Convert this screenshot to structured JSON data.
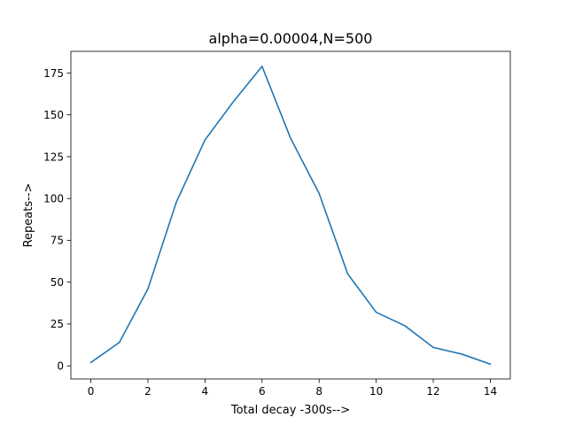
{
  "chart_data": {
    "type": "line",
    "title": "alpha=0.00004,N=500",
    "xlabel": "Total decay -300s-->",
    "ylabel": "Repeats-->",
    "x": [
      0,
      1,
      2,
      3,
      4,
      5,
      6,
      7,
      8,
      9,
      10,
      11,
      12,
      13,
      14
    ],
    "series": [
      {
        "values": [
          2,
          14,
          46,
          98,
          135,
          158,
          179,
          136,
          103,
          55,
          32,
          24,
          11,
          7,
          1
        ],
        "color": "#1f77b4"
      }
    ],
    "xlim": [
      -0.7,
      14.7
    ],
    "ylim": [
      -7.85,
      187.95
    ],
    "xticks": [
      0,
      2,
      4,
      6,
      8,
      10,
      12,
      14
    ],
    "xtick_labels": [
      "0",
      "2",
      "4",
      "6",
      "8",
      "10",
      "12",
      "14"
    ],
    "yticks": [
      0,
      25,
      50,
      75,
      100,
      125,
      150,
      175
    ],
    "ytick_labels": [
      "0",
      "25",
      "50",
      "75",
      "100",
      "125",
      "150",
      "175"
    ],
    "grid": false,
    "legend": "none"
  }
}
